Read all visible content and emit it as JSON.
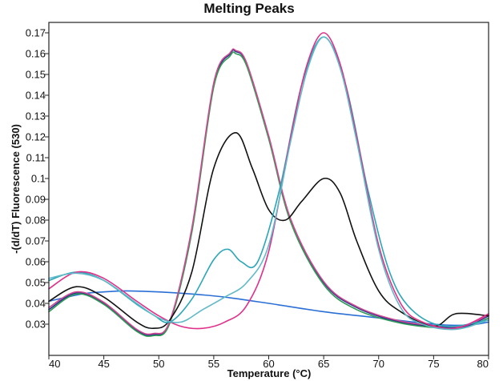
{
  "chart_data": {
    "type": "line",
    "title": "Melting Peaks",
    "xlabel": "Temperature (°C)",
    "ylabel": "-(d/dT) Fluorescence (530)",
    "xlim": [
      40,
      80
    ],
    "ylim": [
      0.015,
      0.175
    ],
    "xticks": [
      40,
      45,
      50,
      55,
      60,
      65,
      70,
      75,
      80
    ],
    "xtick_labels": [
      "40",
      "45",
      "50",
      "55",
      "60",
      "65",
      "70",
      "75",
      "80"
    ],
    "yticks": [
      0.03,
      0.04,
      0.05,
      0.06,
      0.07,
      0.08,
      0.09,
      0.1,
      0.11,
      0.12,
      0.13,
      0.14,
      0.15,
      0.16,
      0.17
    ],
    "ytick_labels": [
      "0.03",
      "0.04",
      "0.05",
      "0.06",
      "0.07",
      "0.08",
      "0.09",
      "0.1",
      "0.11",
      "0.12",
      "0.13",
      "0.14",
      "0.15",
      "0.16",
      "0.17"
    ],
    "grid": false,
    "legend": "none",
    "series": [
      {
        "name": "series-blue-flat",
        "color": "#2a6fd6",
        "x": [
          40,
          43,
          45,
          47,
          50,
          53,
          56,
          60,
          65,
          70,
          75,
          78,
          80
        ],
        "y": [
          0.041,
          0.0445,
          0.0455,
          0.046,
          0.0455,
          0.0445,
          0.043,
          0.04,
          0.036,
          0.033,
          0.03,
          0.0295,
          0.031
        ]
      },
      {
        "name": "series-navy-peak57",
        "color": "#2b2f8f",
        "x": [
          40,
          42.5,
          45,
          48,
          49.5,
          51,
          53,
          55,
          56.5,
          57,
          58,
          60,
          62,
          65,
          68,
          72,
          76,
          78,
          80
        ],
        "y": [
          0.037,
          0.045,
          0.04,
          0.027,
          0.025,
          0.031,
          0.075,
          0.145,
          0.16,
          0.161,
          0.155,
          0.12,
          0.08,
          0.05,
          0.038,
          0.031,
          0.0285,
          0.029,
          0.034
        ]
      },
      {
        "name": "series-green-peak57",
        "color": "#2e9a55",
        "x": [
          40,
          42.5,
          45,
          48,
          49.5,
          51,
          53,
          55,
          56.5,
          57,
          58,
          60,
          62,
          65,
          68,
          72,
          76,
          78,
          80
        ],
        "y": [
          0.036,
          0.0445,
          0.0395,
          0.0265,
          0.0245,
          0.0305,
          0.074,
          0.144,
          0.159,
          0.16,
          0.154,
          0.119,
          0.079,
          0.049,
          0.037,
          0.0305,
          0.028,
          0.0285,
          0.033
        ]
      },
      {
        "name": "series-pink-peak57",
        "color": "#d04a90",
        "x": [
          40,
          42.5,
          45,
          48,
          49.5,
          51,
          53,
          55,
          56.5,
          57,
          58,
          60,
          62,
          65,
          68,
          72,
          76,
          78,
          80
        ],
        "y": [
          0.038,
          0.0455,
          0.0405,
          0.0275,
          0.0255,
          0.0315,
          0.076,
          0.146,
          0.1605,
          0.1615,
          0.1555,
          0.1205,
          0.0805,
          0.0505,
          0.0385,
          0.0315,
          0.029,
          0.0295,
          0.0345
        ]
      },
      {
        "name": "series-black-double",
        "color": "#111111",
        "x": [
          40,
          42.5,
          45,
          48,
          49.5,
          51,
          53,
          55,
          57,
          58.5,
          60,
          61.5,
          63,
          65,
          66.5,
          68,
          70,
          72,
          75,
          77,
          80
        ],
        "y": [
          0.041,
          0.048,
          0.043,
          0.031,
          0.028,
          0.032,
          0.055,
          0.105,
          0.122,
          0.105,
          0.085,
          0.08,
          0.089,
          0.1,
          0.093,
          0.07,
          0.046,
          0.036,
          0.029,
          0.035,
          0.034
        ]
      },
      {
        "name": "series-teal-double",
        "color": "#2aa6b8",
        "x": [
          40,
          42.5,
          45,
          48,
          49.5,
          51,
          53,
          55,
          56.3,
          57.5,
          59,
          61,
          63,
          65,
          67,
          69,
          71,
          73,
          76,
          80
        ],
        "y": [
          0.051,
          0.055,
          0.051,
          0.0395,
          0.0345,
          0.031,
          0.042,
          0.061,
          0.066,
          0.06,
          0.06,
          0.095,
          0.145,
          0.168,
          0.145,
          0.095,
          0.055,
          0.037,
          0.029,
          0.032
        ]
      },
      {
        "name": "series-magenta-peak65",
        "color": "#e0308a",
        "x": [
          40,
          42.5,
          45,
          48,
          50,
          52,
          54,
          56,
          58,
          60,
          62,
          63.5,
          65,
          66.5,
          68,
          70,
          72,
          74,
          77,
          80
        ],
        "y": [
          0.047,
          0.055,
          0.052,
          0.041,
          0.034,
          0.029,
          0.028,
          0.031,
          0.039,
          0.065,
          0.12,
          0.155,
          0.17,
          0.155,
          0.12,
          0.068,
          0.04,
          0.031,
          0.028,
          0.035
        ]
      },
      {
        "name": "series-lightteal-peak65",
        "color": "#5fb9c8",
        "x": [
          40,
          42.5,
          45,
          48,
          50,
          52,
          54,
          56,
          58,
          60,
          62,
          63.5,
          65,
          66.5,
          68,
          70,
          72,
          74,
          77,
          80
        ],
        "y": [
          0.052,
          0.0545,
          0.051,
          0.04,
          0.033,
          0.031,
          0.037,
          0.043,
          0.05,
          0.068,
          0.118,
          0.152,
          0.168,
          0.153,
          0.118,
          0.066,
          0.038,
          0.03,
          0.0275,
          0.032
        ]
      }
    ]
  }
}
